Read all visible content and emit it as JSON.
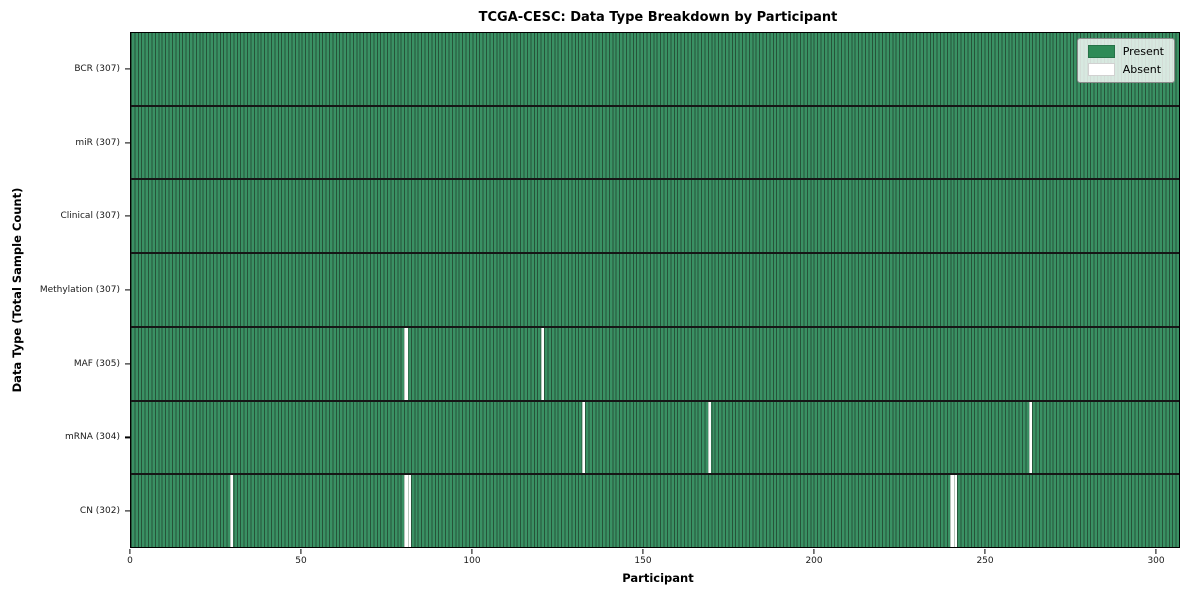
{
  "figure": {
    "title": "TCGA-CESC: Data Type Breakdown by Participant",
    "xlabel": "Participant",
    "ylabel": "Data Type (Total Sample Count)"
  },
  "chart_data": {
    "type": "heatmap",
    "title": "TCGA-CESC: Data Type Breakdown by Participant",
    "xlabel": "Participant",
    "ylabel": "Data Type (Total Sample Count)",
    "n_participants": 307,
    "x_range": [
      0,
      307
    ],
    "x_ticks": [
      0,
      50,
      100,
      150,
      200,
      250,
      300
    ],
    "grid": false,
    "legend_position": "upper right",
    "legend": [
      {
        "label": "Present",
        "color": "#2e8b57"
      },
      {
        "label": "Absent",
        "color": "#ffffff"
      }
    ],
    "rows": [
      {
        "label": "BCR (307)",
        "data_type": "BCR",
        "total": 307,
        "absent_participants": []
      },
      {
        "label": "miR (307)",
        "data_type": "miR",
        "total": 307,
        "absent_participants": []
      },
      {
        "label": "Clinical (307)",
        "data_type": "Clinical",
        "total": 307,
        "absent_participants": []
      },
      {
        "label": "Methylation (307)",
        "data_type": "Methylation",
        "total": 307,
        "absent_participants": []
      },
      {
        "label": "MAF (305)",
        "data_type": "MAF",
        "total": 305,
        "absent_participants": [
          80,
          120
        ]
      },
      {
        "label": "mRNA (304)",
        "data_type": "mRNA",
        "total": 304,
        "absent_participants": [
          132,
          169,
          263
        ]
      },
      {
        "label": "CN (302)",
        "data_type": "CN",
        "total": 302,
        "absent_participants": [
          29,
          80,
          81,
          240,
          241
        ]
      }
    ],
    "colors": {
      "present": "#3a9164",
      "cell_edge": "#26543a",
      "absent": "#ffffff",
      "row_separator": "#161616",
      "spine": "#000000"
    }
  }
}
